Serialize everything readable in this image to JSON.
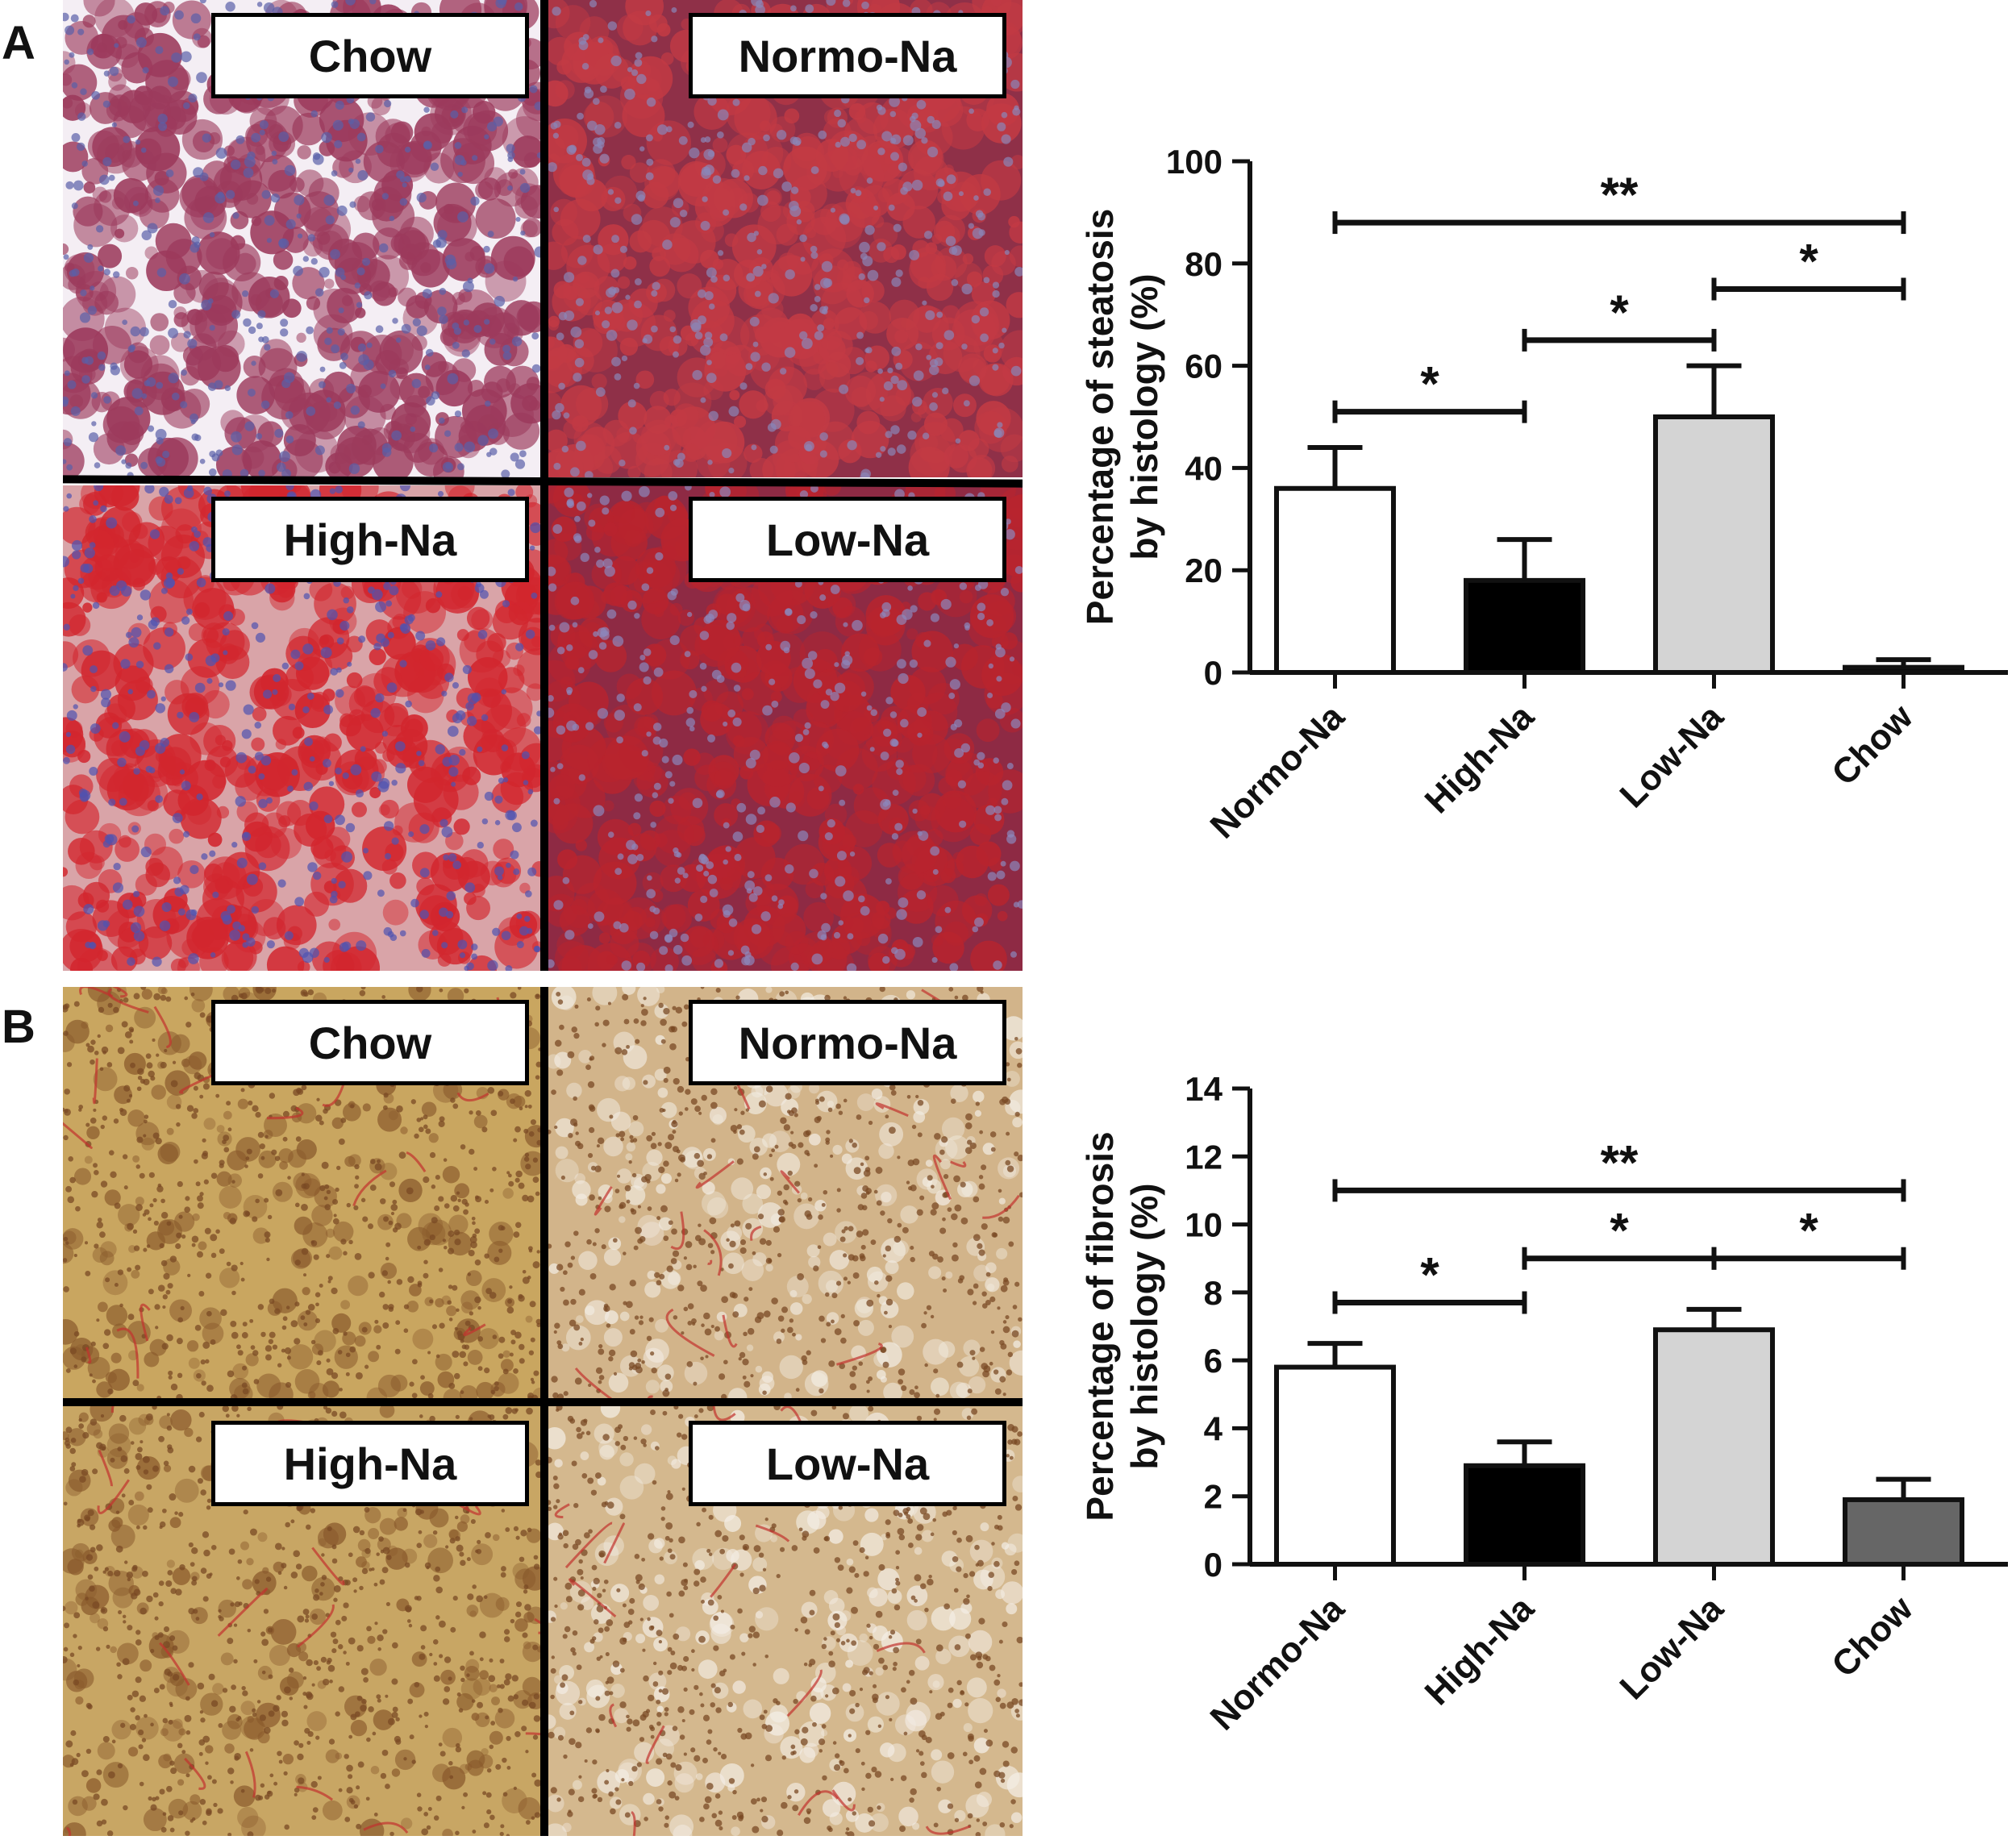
{
  "panels": {
    "a": {
      "letter": "A",
      "micrographs": [
        {
          "label": "Chow",
          "stain": "oil-red-o",
          "base": "#f4eef4",
          "spot": "#9c3a5c",
          "nuclei": "#5a5fa8"
        },
        {
          "label": "Normo-Na",
          "stain": "oil-red-o",
          "base": "#8f3048",
          "spot": "#c23a44",
          "nuclei": "#8a86b8"
        },
        {
          "label": "High-Na",
          "stain": "oil-red-o",
          "base": "#d9a4a8",
          "spot": "#d2262e",
          "nuclei": "#4e52b0"
        },
        {
          "label": "Low-Na",
          "stain": "oil-red-o",
          "base": "#8e2a44",
          "spot": "#b8242e",
          "nuclei": "#8c88bc"
        }
      ]
    },
    "b": {
      "letter": "B",
      "micrographs": [
        {
          "label": "Chow",
          "stain": "sirius-red",
          "base": "#c9a660",
          "spot": "#8a5a2c",
          "nuclei": "#7a4a24"
        },
        {
          "label": "Normo-Na",
          "stain": "sirius-red",
          "base": "#d2b48a",
          "spot": "#f2ece2",
          "nuclei": "#7a4a24"
        },
        {
          "label": "High-Na",
          "stain": "sirius-red",
          "base": "#c8a664",
          "spot": "#8a5a2c",
          "nuclei": "#7a4a24"
        },
        {
          "label": "Low-Na",
          "stain": "sirius-red",
          "base": "#d4b88e",
          "spot": "#f4eee6",
          "nuclei": "#7a4a24"
        }
      ]
    }
  },
  "chart_data": [
    {
      "type": "bar",
      "panel": "A",
      "categories": [
        "Normo-Na",
        "High-Na",
        "Low-Na",
        "Chow"
      ],
      "values": [
        36,
        18,
        50,
        1
      ],
      "errors": [
        8,
        8,
        10,
        1.5
      ],
      "colors": [
        "#ffffff",
        "#000000",
        "#d4d4d4",
        "#000000"
      ],
      "ylabel": [
        "Percentage of steatosis",
        "by histology (%)"
      ],
      "ylim": [
        0,
        100
      ],
      "yticks": [
        0,
        20,
        40,
        60,
        80,
        100
      ],
      "grid": false,
      "significance": [
        {
          "from": 0,
          "to": 1,
          "y": 51,
          "label": "*"
        },
        {
          "from": 1,
          "to": 2,
          "y": 65,
          "label": "*"
        },
        {
          "from": 2,
          "to": 3,
          "y": 75,
          "label": "*"
        },
        {
          "from": 0,
          "to": 3,
          "y": 88,
          "label": "**"
        }
      ]
    },
    {
      "type": "bar",
      "panel": "B",
      "categories": [
        "Normo-Na",
        "High-Na",
        "Low-Na",
        "Chow"
      ],
      "values": [
        5.8,
        2.9,
        6.9,
        1.9
      ],
      "errors": [
        0.7,
        0.7,
        0.6,
        0.6
      ],
      "colors": [
        "#ffffff",
        "#000000",
        "#d4d4d4",
        "#666666"
      ],
      "ylabel": [
        "Percentage of fibrosis",
        "by histology (%)"
      ],
      "ylim": [
        0,
        14
      ],
      "yticks": [
        0,
        2,
        4,
        6,
        8,
        10,
        12,
        14
      ],
      "grid": false,
      "significance": [
        {
          "from": 0,
          "to": 1,
          "y": 7.7,
          "label": "*"
        },
        {
          "from": 1,
          "to": 2,
          "y": 9.0,
          "label": "*"
        },
        {
          "from": 2,
          "to": 3,
          "y": 9.0,
          "label": "*"
        },
        {
          "from": 0,
          "to": 3,
          "y": 11.0,
          "label": "**"
        }
      ]
    }
  ]
}
